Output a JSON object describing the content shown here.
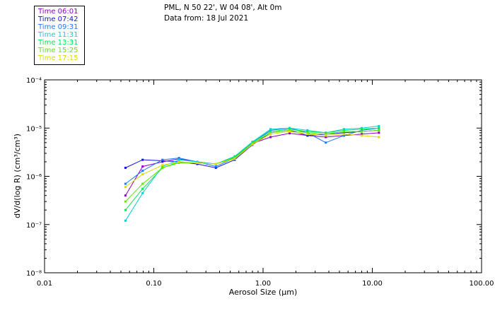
{
  "header": {
    "location": "PML, N 50 22', W 04 08', Alt 0m",
    "date_line": "Data from: 18 Jul 2021"
  },
  "legend": [
    {
      "label": "Time 06:01",
      "color": "#8a00c8"
    },
    {
      "label": "Time 07:42",
      "color": "#1414dc"
    },
    {
      "label": "Time 09:31",
      "color": "#1e78ff"
    },
    {
      "label": "Time 11:31",
      "color": "#00d2d2"
    },
    {
      "label": "Time 13:31",
      "color": "#00e650"
    },
    {
      "label": "Time 15:25",
      "color": "#64e600"
    },
    {
      "label": "Time 17:15",
      "color": "#dcdc00"
    }
  ],
  "chart_data": {
    "type": "line",
    "xscale": "log",
    "yscale": "log",
    "xlim": [
      0.01,
      100
    ],
    "ylim": [
      1e-08,
      0.0001
    ],
    "xlabel": "Aerosol Size (",
    "xlabel_unit": "µm",
    "xlabel_close": ")",
    "ylabel": "dV/d(log R) (cm³/cm³)",
    "xticks": [
      {
        "value": 0.01,
        "label": "0.01"
      },
      {
        "value": 0.1,
        "label": "0.10"
      },
      {
        "value": 1,
        "label": "1.00"
      },
      {
        "value": 10,
        "label": "10.00"
      },
      {
        "value": 100,
        "label": "100.00"
      }
    ],
    "yticks": [
      {
        "value": 1e-08,
        "label": "10⁻⁸"
      },
      {
        "value": 1e-07,
        "label": "10⁻⁷"
      },
      {
        "value": 1e-06,
        "label": "10⁻⁶"
      },
      {
        "value": 1e-05,
        "label": "10⁻⁵"
      },
      {
        "value": 0.0001,
        "label": "10⁻⁴"
      }
    ],
    "x": [
      0.055,
      0.079,
      0.12,
      0.17,
      0.25,
      0.37,
      0.55,
      0.8,
      1.17,
      1.75,
      2.55,
      3.75,
      5.5,
      8.0,
      11.5
    ],
    "series": [
      {
        "name": "Time 06:01",
        "color": "#8a00c8",
        "values": [
          4e-07,
          1.6e-06,
          2e-06,
          2.3e-06,
          2e-06,
          1.8e-06,
          2.4e-06,
          4.8e-06,
          6.5e-06,
          7.8e-06,
          7e-06,
          6.5e-06,
          7e-06,
          7.5e-06,
          8e-06
        ]
      },
      {
        "name": "Time 07:42",
        "color": "#1414dc",
        "values": [
          1.5e-06,
          2.2e-06,
          2.1e-06,
          2e-06,
          1.8e-06,
          1.5e-06,
          2.2e-06,
          4.5e-06,
          8e-06,
          9e-06,
          7e-06,
          7.5e-06,
          8e-06,
          8.5e-06,
          9e-06
        ]
      },
      {
        "name": "Time 09:31",
        "color": "#1e78ff",
        "values": [
          7e-07,
          1.3e-06,
          2.2e-06,
          2.4e-06,
          2e-06,
          1.6e-06,
          2.4e-06,
          5e-06,
          9e-06,
          1e-05,
          8e-06,
          5e-06,
          7e-06,
          9e-06,
          1e-05
        ]
      },
      {
        "name": "Time 11:31",
        "color": "#00d2d2",
        "values": [
          1.2e-07,
          4.5e-07,
          1.6e-06,
          2.2e-06,
          2e-06,
          1.8e-06,
          2.6e-06,
          5.2e-06,
          9.5e-06,
          1e-05,
          9e-06,
          8e-06,
          9.5e-06,
          1e-05,
          1.1e-05
        ]
      },
      {
        "name": "Time 13:31",
        "color": "#00e650",
        "values": [
          2e-07,
          5.5e-07,
          1.5e-06,
          2e-06,
          1.9e-06,
          1.8e-06,
          2.5e-06,
          5e-06,
          8.5e-06,
          9.5e-06,
          8.5e-06,
          8e-06,
          9e-06,
          9.5e-06,
          1e-05
        ]
      },
      {
        "name": "Time 15:25",
        "color": "#64e600",
        "values": [
          3e-07,
          7e-07,
          1.5e-06,
          1.9e-06,
          1.9e-06,
          1.8e-06,
          2.4e-06,
          4.8e-06,
          8e-06,
          9e-06,
          8e-06,
          7.5e-06,
          8.5e-06,
          8.5e-06,
          9e-06
        ]
      },
      {
        "name": "Time 17:15",
        "color": "#dcdc00",
        "values": [
          6e-07,
          1.1e-06,
          1.7e-06,
          2e-06,
          1.9e-06,
          1.8e-06,
          2.3e-06,
          4.6e-06,
          7.5e-06,
          8.5e-06,
          7.5e-06,
          7e-06,
          7.5e-06,
          7e-06,
          6.5e-06
        ]
      }
    ]
  }
}
